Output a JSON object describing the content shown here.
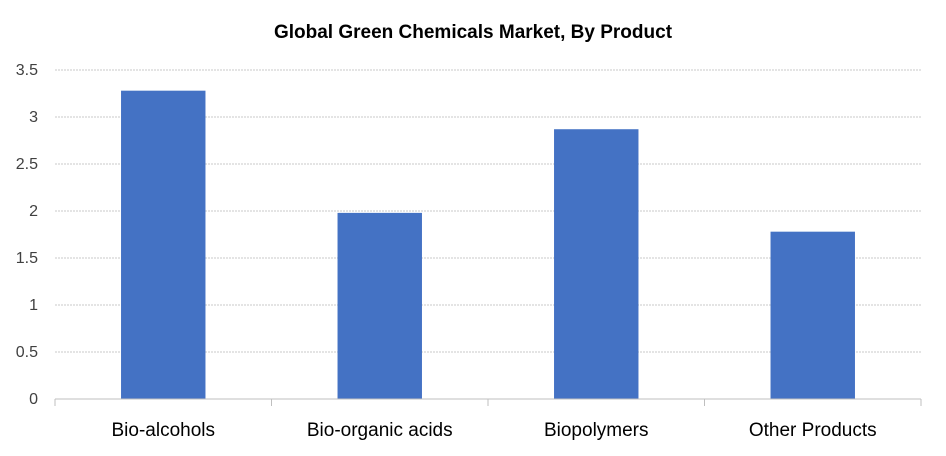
{
  "chart_data": {
    "type": "bar",
    "title": "Global Green Chemicals Market, By Product",
    "categories": [
      "Bio-alcohols",
      "Bio-organic acids",
      "Biopolymers",
      "Other Products"
    ],
    "values": [
      3.28,
      1.98,
      2.87,
      1.78
    ],
    "y_ticks": [
      "0",
      "0.5",
      "1",
      "1.5",
      "2",
      "2.5",
      "3",
      "3.5"
    ],
    "ylim": [
      0,
      3.5
    ],
    "xlabel": "",
    "ylabel": "",
    "grid": true,
    "legend": "none",
    "bar_color": "#4472C4"
  }
}
